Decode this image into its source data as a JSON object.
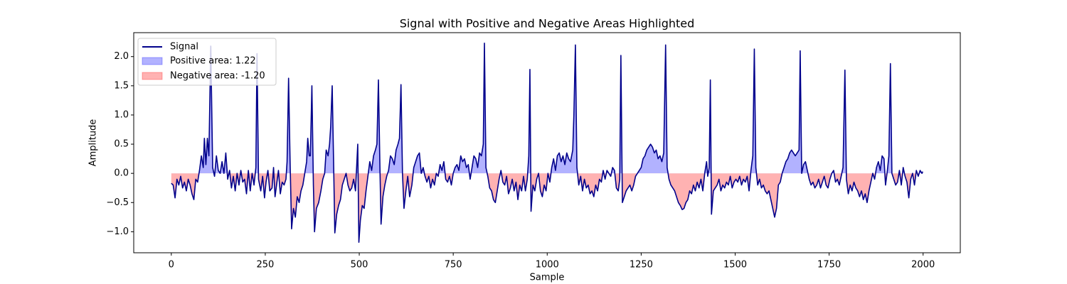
{
  "chart_data": {
    "type": "line",
    "title": "Signal with Positive and Negative Areas Highlighted",
    "x_label": "Sample",
    "y_label": "Amplitude",
    "xlim": [
      -99.95,
      2098.95
    ],
    "ylim": [
      -1.36,
      2.41
    ],
    "xticks": [
      0,
      250,
      500,
      750,
      1000,
      1250,
      1500,
      1750,
      2000
    ],
    "yticks": [
      {
        "value": -1,
        "label": "−1.0"
      },
      {
        "value": -0.5,
        "label": "−0.5"
      },
      {
        "value": 0,
        "label": "0.0"
      },
      0.5,
      {
        "value": 1,
        "label": "1.0"
      },
      1.5,
      {
        "value": 2,
        "label": "2.0"
      }
    ],
    "legend": "upper left",
    "x": [
      0,
      5,
      10,
      15,
      20,
      25,
      30,
      35,
      40,
      45,
      50,
      55,
      60,
      65,
      70,
      75,
      80,
      85,
      88,
      92,
      96,
      100,
      105,
      110,
      115,
      120,
      125,
      130,
      135,
      140,
      145,
      150,
      155,
      160,
      165,
      170,
      175,
      180,
      185,
      190,
      195,
      200,
      205,
      210,
      215,
      220,
      225,
      228,
      232,
      238,
      243,
      248,
      252,
      257,
      262,
      268,
      272,
      276,
      280,
      285,
      290,
      295,
      300,
      305,
      308,
      312,
      316,
      320,
      325,
      330,
      335,
      340,
      345,
      350,
      355,
      360,
      363,
      367,
      370,
      374,
      378,
      381,
      386,
      392,
      398,
      403,
      408,
      412,
      417,
      421,
      424,
      428,
      432,
      435,
      440,
      445,
      450,
      455,
      460,
      465,
      470,
      475,
      480,
      485,
      490,
      496,
      499,
      503,
      508,
      513,
      518,
      523,
      528,
      533,
      538,
      543,
      547,
      551,
      555,
      558,
      563,
      568,
      573,
      578,
      583,
      588,
      593,
      598,
      603,
      607,
      611,
      615,
      619,
      624,
      629,
      634,
      640,
      645,
      650,
      655,
      660,
      665,
      670,
      675,
      680,
      685,
      690,
      695,
      700,
      705,
      710,
      715,
      720,
      725,
      730,
      735,
      740,
      745,
      750,
      755,
      760,
      765,
      770,
      775,
      780,
      785,
      790,
      795,
      800,
      805,
      810,
      815,
      820,
      825,
      830,
      833,
      837,
      842,
      847,
      852,
      857,
      862,
      867,
      872,
      877,
      882,
      887,
      892,
      897,
      902,
      907,
      912,
      917,
      922,
      927,
      932,
      937,
      942,
      947,
      951,
      954,
      957,
      962,
      967,
      972,
      977,
      982,
      987,
      992,
      997,
      1002,
      1007,
      1012,
      1017,
      1022,
      1027,
      1032,
      1037,
      1042,
      1047,
      1052,
      1057,
      1062,
      1068,
      1071,
      1075,
      1079,
      1084,
      1089,
      1094,
      1099,
      1104,
      1109,
      1114,
      1119,
      1124,
      1129,
      1134,
      1139,
      1144,
      1149,
      1154,
      1159,
      1164,
      1169,
      1174,
      1179,
      1184,
      1189,
      1193,
      1196,
      1200,
      1205,
      1210,
      1215,
      1220,
      1225,
      1230,
      1235,
      1240,
      1245,
      1250,
      1255,
      1260,
      1265,
      1270,
      1275,
      1280,
      1285,
      1290,
      1295,
      1300,
      1305,
      1310,
      1315,
      1319,
      1324,
      1329,
      1334,
      1339,
      1344,
      1349,
      1354,
      1359,
      1364,
      1369,
      1374,
      1379,
      1384,
      1389,
      1394,
      1399,
      1404,
      1409,
      1414,
      1419,
      1424,
      1427,
      1431,
      1434,
      1437,
      1442,
      1447,
      1452,
      1457,
      1462,
      1467,
      1472,
      1477,
      1482,
      1487,
      1492,
      1497,
      1502,
      1507,
      1512,
      1517,
      1522,
      1527,
      1532,
      1537,
      1542,
      1547,
      1551,
      1555,
      1560,
      1565,
      1570,
      1575,
      1580,
      1585,
      1590,
      1595,
      1600,
      1605,
      1610,
      1615,
      1620,
      1625,
      1630,
      1635,
      1640,
      1645,
      1650,
      1655,
      1660,
      1665,
      1670,
      1673,
      1677,
      1682,
      1687,
      1692,
      1697,
      1702,
      1707,
      1712,
      1717,
      1722,
      1727,
      1732,
      1737,
      1742,
      1747,
      1752,
      1757,
      1762,
      1767,
      1772,
      1777,
      1782,
      1787,
      1792,
      1796,
      1801,
      1806,
      1811,
      1816,
      1821,
      1826,
      1831,
      1836,
      1841,
      1846,
      1851,
      1856,
      1861,
      1866,
      1871,
      1876,
      1881,
      1886,
      1891,
      1896,
      1900,
      1905,
      1909,
      1913,
      1917,
      1922,
      1927,
      1932,
      1937,
      1942,
      1947,
      1952,
      1957,
      1962,
      1967,
      1972,
      1977,
      1982,
      1987,
      1992,
      1997,
      1999
    ],
    "series": [
      {
        "name": "Signal",
        "color": "#00008b",
        "values": [
          -0.17,
          -0.2,
          -0.42,
          -0.1,
          -0.2,
          -0.05,
          -0.25,
          -0.15,
          -0.3,
          -0.1,
          -0.2,
          -0.35,
          -0.45,
          -0.1,
          -0.15,
          0.05,
          0.3,
          0.1,
          0.6,
          0.15,
          0.6,
          0.3,
          2.18,
          0.1,
          -0.05,
          0.3,
          0.05,
          0.0,
          0.2,
          0.0,
          0.35,
          -0.1,
          0.05,
          -0.25,
          -0.05,
          -0.3,
          0.0,
          -0.2,
          0.05,
          -0.15,
          -0.1,
          -0.35,
          0.05,
          -0.3,
          0.0,
          -0.2,
          0.1,
          2.05,
          -0.1,
          -0.3,
          -0.05,
          -0.42,
          -0.15,
          0.05,
          -0.3,
          -0.25,
          0.1,
          -0.4,
          -0.2,
          0.05,
          -0.35,
          -0.15,
          -0.2,
          -0.1,
          0.2,
          1.63,
          0.2,
          -0.95,
          -0.6,
          -0.75,
          -0.4,
          -0.5,
          -0.3,
          -0.2,
          0.0,
          0.2,
          0.6,
          0.3,
          0.3,
          1.5,
          -0.2,
          -1.0,
          -0.6,
          -0.5,
          -0.3,
          -0.1,
          0.0,
          0.4,
          0.3,
          0.5,
          0.8,
          1.5,
          0.1,
          -1.02,
          -0.7,
          -0.55,
          -0.45,
          -0.2,
          -0.1,
          0.0,
          -0.2,
          -0.3,
          -0.25,
          -0.1,
          -0.3,
          0.5,
          -1.18,
          -0.8,
          -0.55,
          -0.6,
          -0.3,
          -0.05,
          0.2,
          0.05,
          0.3,
          0.4,
          0.5,
          1.6,
          0.1,
          -0.87,
          -0.4,
          -0.2,
          -0.05,
          0.05,
          0.3,
          0.25,
          0.15,
          0.4,
          0.5,
          0.6,
          1.52,
          0.0,
          -0.6,
          -0.3,
          -0.05,
          -0.4,
          -0.2,
          0.1,
          0.2,
          0.3,
          0.35,
          0.0,
          0.1,
          -0.05,
          -0.15,
          -0.05,
          -0.25,
          -0.1,
          -0.2,
          0.0,
          -0.05,
          0.15,
          0.05,
          0.2,
          -0.1,
          -0.15,
          -0.05,
          -0.2,
          0.0,
          0.1,
          0.15,
          0.05,
          0.3,
          0.2,
          0.25,
          0.1,
          0.15,
          -0.1,
          0.1,
          0.3,
          0.25,
          0.1,
          0.35,
          0.3,
          0.5,
          2.23,
          0.1,
          -0.05,
          -0.25,
          -0.3,
          -0.45,
          -0.5,
          -0.3,
          -0.1,
          0.05,
          -0.15,
          -0.2,
          -0.05,
          -0.35,
          -0.25,
          -0.1,
          -0.3,
          -0.15,
          -0.45,
          -0.2,
          -0.3,
          -0.05,
          -0.3,
          -0.1,
          0.3,
          1.78,
          -0.65,
          -0.2,
          -0.3,
          -0.1,
          0.0,
          -0.3,
          -0.4,
          -0.2,
          -0.3,
          0.0,
          -0.15,
          0.1,
          0.25,
          0.05,
          0.3,
          0.35,
          0.2,
          0.3,
          0.15,
          0.35,
          0.25,
          0.2,
          0.4,
          1.0,
          2.2,
          0.1,
          -0.2,
          -0.05,
          -0.3,
          -0.1,
          -0.25,
          -0.2,
          -0.35,
          -0.3,
          -0.4,
          -0.2,
          -0.3,
          -0.1,
          -0.15,
          0.05,
          -0.1,
          0.05,
          0.0,
          -0.05,
          0.1,
          0.05,
          -0.25,
          -0.3,
          -0.1,
          2.02,
          -0.5,
          -0.4,
          -0.3,
          -0.25,
          -0.2,
          -0.3,
          -0.2,
          -0.05,
          0.0,
          0.05,
          0.1,
          0.25,
          0.3,
          0.4,
          0.45,
          0.5,
          0.45,
          0.35,
          0.4,
          0.25,
          0.3,
          0.2,
          0.35,
          2.2,
          0.1,
          -0.1,
          -0.2,
          -0.25,
          -0.3,
          -0.4,
          -0.5,
          -0.55,
          -0.62,
          -0.6,
          -0.5,
          -0.45,
          -0.3,
          -0.35,
          -0.2,
          -0.3,
          -0.15,
          -0.25,
          -0.1,
          -0.3,
          0.0,
          0.2,
          -0.05,
          0.1,
          1.6,
          -0.7,
          -0.3,
          -0.25,
          -0.2,
          -0.1,
          -0.3,
          -0.2,
          -0.25,
          -0.15,
          -0.2,
          -0.05,
          -0.25,
          -0.15,
          -0.1,
          -0.15,
          -0.05,
          -0.2,
          -0.1,
          -0.15,
          -0.05,
          -0.3,
          0.05,
          0.3,
          2.13,
          0.1,
          -0.2,
          -0.1,
          -0.25,
          -0.2,
          -0.3,
          -0.35,
          -0.3,
          -0.45,
          -0.6,
          -0.75,
          -0.6,
          -0.2,
          -0.15,
          0.0,
          0.1,
          0.2,
          0.25,
          0.35,
          0.4,
          0.35,
          0.3,
          0.35,
          0.4,
          2.1,
          0.0,
          0.15,
          0.2,
          0.05,
          -0.1,
          -0.2,
          -0.15,
          -0.25,
          -0.2,
          -0.1,
          -0.25,
          -0.15,
          -0.05,
          -0.2,
          -0.25,
          -0.1,
          0.0,
          0.05,
          -0.15,
          -0.1,
          -0.2,
          -0.05,
          0.1,
          1.77,
          -0.1,
          -0.35,
          -0.2,
          -0.3,
          -0.15,
          -0.25,
          -0.3,
          -0.4,
          -0.3,
          -0.45,
          -0.35,
          -0.5,
          -0.3,
          -0.15,
          0.0,
          -0.1,
          0.1,
          0.2,
          0.05,
          0.3,
          0.25,
          -0.2,
          0.05,
          0.3,
          1.88,
          0.0,
          -0.1,
          -0.2,
          -0.15,
          0.05,
          -0.2,
          0.1,
          -0.05,
          -0.15,
          -0.42,
          -0.1,
          0.0,
          -0.2,
          0.05,
          -0.05,
          0.05,
          0.0,
          0.03
        ]
      }
    ],
    "areas": [
      {
        "name": "Positive area: 1.22",
        "color": "#0000ff",
        "side": "positive"
      },
      {
        "name": "Negative area: -1.20",
        "color": "#ff0000",
        "side": "negative"
      }
    ]
  }
}
